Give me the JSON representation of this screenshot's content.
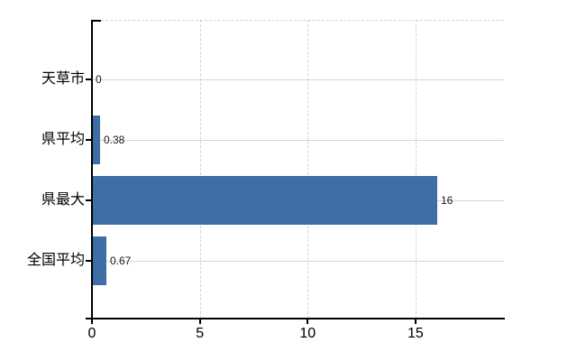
{
  "chart_data": {
    "type": "bar",
    "orientation": "horizontal",
    "title": "",
    "xlabel": "",
    "ylabel": "",
    "categories": [
      "天草市",
      "県平均",
      "県最大",
      "全国平均"
    ],
    "values": [
      0,
      0.38,
      16,
      0.67
    ],
    "value_labels": [
      "0",
      "0.38",
      "16",
      "0.67"
    ],
    "x_ticks": [
      0,
      5,
      10,
      15
    ],
    "x_tick_labels": [
      "0",
      "5",
      "10",
      "15"
    ],
    "xlim": [
      0,
      19.1
    ],
    "grid": true,
    "legend_position": "none",
    "bar_color": "#3e6da8",
    "axis_color": "#000000",
    "horizontal_gridline_color": "#cfd8cf",
    "vertical_gridline_color": "#d8cfd6",
    "background_color": "#ffffff"
  }
}
